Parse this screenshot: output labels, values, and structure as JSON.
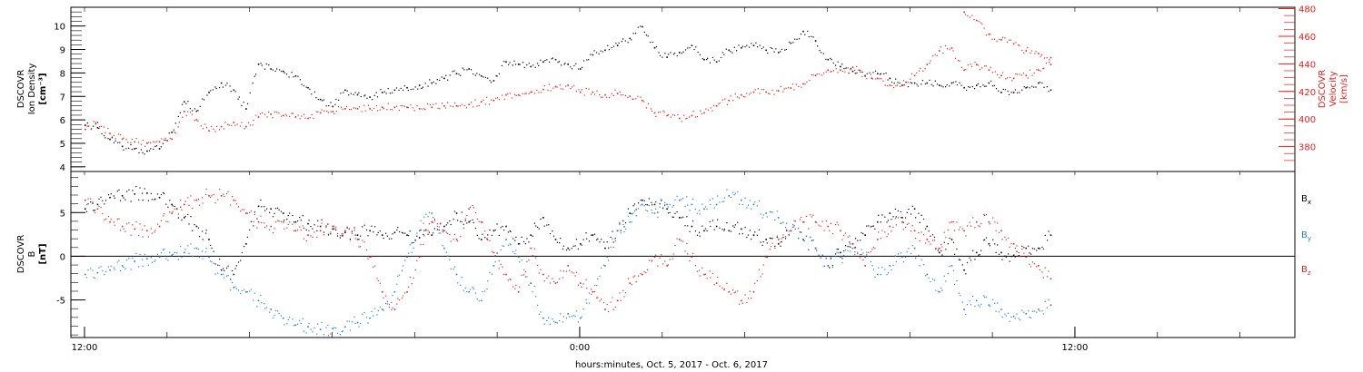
{
  "colors": {
    "black": "#000000",
    "red": "#e8201c",
    "blue": "#1e7fd6"
  },
  "xaxis": {
    "title": "hours:minutes, Oct.  5, 2017 - Oct.  6, 2017",
    "tick_labels": [
      "12:00",
      "0:00",
      "12:00"
    ],
    "tick_hours": [
      0,
      12,
      24
    ],
    "range_hours": [
      -0.33,
      29.33
    ]
  },
  "chart_data": [
    {
      "type": "scatter",
      "panel": "top",
      "left_axis": {
        "label_lines": [
          "DSCOVR",
          "Ion Density",
          "[cm⁻³]"
        ],
        "ticks": [
          "4",
          "5",
          "6",
          "7",
          "8",
          "9",
          "10"
        ],
        "tick_values": [
          4,
          5,
          6,
          7,
          8,
          9,
          10
        ],
        "ylim": [
          3.8,
          10.8
        ]
      },
      "right_axis": {
        "label_lines": [
          "DSCOVR",
          "Velocity",
          "[km/s]"
        ],
        "ticks": [
          "380",
          "400",
          "420",
          "440",
          "460",
          "480"
        ],
        "tick_values": [
          380,
          400,
          420,
          440,
          460,
          480
        ],
        "ylim": [
          362,
          481
        ]
      },
      "series": [
        {
          "key": "density",
          "axis": "left",
          "color": "#000000",
          "x": [
            0.0,
            0.3,
            0.6,
            0.9,
            1.2,
            1.5,
            1.8,
            2.1,
            2.4,
            2.7,
            3.0,
            3.3,
            3.6,
            3.9,
            4.2,
            4.5,
            4.8,
            5.1,
            5.4,
            5.7,
            6.0,
            6.3,
            6.6,
            6.9,
            7.2,
            7.5,
            7.8,
            8.1,
            8.4,
            8.7,
            9.0,
            9.3,
            9.6,
            9.9,
            10.2,
            10.5,
            10.8,
            11.1,
            11.4,
            11.7,
            12.0,
            12.3,
            12.6,
            12.9,
            13.2,
            13.5,
            13.8,
            14.1,
            14.4,
            14.7,
            15.0,
            15.3,
            15.6,
            15.9,
            16.2,
            16.5,
            16.8,
            17.1,
            17.4,
            17.7,
            18.0,
            18.3,
            18.6,
            18.9,
            19.2,
            19.5,
            19.8,
            20.1,
            20.4,
            20.7,
            21.0,
            21.3,
            21.6,
            21.9,
            22.2,
            22.5,
            22.8,
            23.1,
            23.4
          ],
          "y": [
            5.8,
            5.7,
            5.2,
            4.9,
            4.8,
            4.7,
            4.8,
            5.5,
            6.8,
            6.4,
            7.2,
            7.6,
            7.3,
            6.5,
            8.4,
            8.2,
            8.1,
            7.9,
            7.4,
            6.9,
            6.6,
            7.3,
            7.1,
            7.0,
            7.2,
            7.3,
            7.4,
            7.5,
            7.6,
            7.8,
            8.0,
            8.2,
            7.9,
            7.7,
            8.5,
            8.4,
            8.3,
            8.5,
            8.6,
            8.4,
            8.2,
            8.8,
            9.0,
            9.2,
            9.5,
            10.0,
            9.1,
            8.7,
            8.9,
            9.2,
            8.6,
            8.5,
            9.0,
            9.1,
            9.2,
            9.0,
            8.9,
            9.3,
            9.8,
            9.4,
            8.6,
            8.3,
            8.1,
            7.9,
            8.0,
            7.8,
            7.5,
            7.6,
            7.6,
            7.5,
            7.6,
            7.4,
            7.5,
            7.6,
            7.2,
            7.2,
            7.4,
            7.6,
            7.3
          ]
        },
        {
          "key": "velocity",
          "axis": "right",
          "color": "#e8201c",
          "x": [
            0.0,
            0.3,
            0.6,
            0.9,
            1.2,
            1.5,
            1.8,
            2.1,
            2.4,
            2.7,
            3.0,
            3.3,
            3.6,
            3.9,
            4.2,
            4.5,
            4.8,
            5.1,
            5.4,
            5.7,
            6.0,
            6.3,
            6.6,
            6.9,
            7.2,
            7.5,
            7.8,
            8.1,
            8.4,
            8.7,
            9.0,
            9.3,
            9.6,
            9.9,
            10.2,
            10.5,
            10.8,
            11.1,
            11.4,
            11.7,
            12.0,
            12.3,
            12.6,
            12.9,
            13.2,
            13.5,
            13.8,
            14.1,
            14.4,
            14.7,
            15.0,
            15.3,
            15.6,
            15.9,
            16.2,
            16.5,
            16.8,
            17.1,
            17.4,
            17.7,
            18.0,
            18.3,
            18.6,
            18.9,
            19.2,
            19.5,
            19.8,
            20.1,
            20.4,
            20.7,
            21.0,
            21.3,
            21.6,
            21.9,
            22.2,
            22.5,
            22.8,
            23.1,
            23.4
          ],
          "y": [
            393,
            398,
            390,
            386,
            384,
            383,
            384,
            386,
            406,
            400,
            392,
            395,
            398,
            395,
            402,
            404,
            403,
            402,
            401,
            405,
            406,
            408,
            408,
            408,
            409,
            409,
            409,
            408,
            409,
            410,
            410,
            411,
            413,
            414,
            418,
            418,
            420,
            422,
            424,
            425,
            420,
            420,
            418,
            419,
            417,
            414,
            405,
            403,
            401,
            403,
            405,
            410,
            414,
            418,
            420,
            420,
            421,
            423,
            426,
            432,
            436,
            436,
            438,
            432,
            430,
            425,
            425,
            432,
            440,
            450,
            452,
            436,
            440,
            436,
            432,
            430,
            432,
            436,
            440
          ]
        },
        {
          "key": "velocity_late",
          "axis": "right",
          "color": "#e8201c",
          "x": [
            21.3,
            21.6,
            21.9,
            22.2,
            22.5,
            22.8,
            23.1,
            23.4
          ],
          "y": [
            478,
            472,
            462,
            458,
            455,
            450,
            448,
            445
          ]
        }
      ]
    },
    {
      "type": "scatter",
      "panel": "bottom",
      "left_axis": {
        "label_lines": [
          "DSCOVR",
          "B",
          "[nT]"
        ],
        "ticks": [
          "-5",
          "0",
          "5"
        ],
        "tick_values": [
          -5,
          0,
          5
        ],
        "ylim": [
          -9.3,
          9.7
        ]
      },
      "zero_line": true,
      "series": [
        {
          "key": "bx",
          "name": "B",
          "sub": "x",
          "color": "#000000",
          "x": [
            0.0,
            0.3,
            0.6,
            0.9,
            1.2,
            1.5,
            1.8,
            2.1,
            2.4,
            2.7,
            3.0,
            3.3,
            3.6,
            3.9,
            4.2,
            4.5,
            4.8,
            5.1,
            5.4,
            5.7,
            6.0,
            6.3,
            6.6,
            6.9,
            7.2,
            7.5,
            7.8,
            8.1,
            8.4,
            8.7,
            9.0,
            9.3,
            9.6,
            9.9,
            10.2,
            10.5,
            10.8,
            11.1,
            11.4,
            11.7,
            12.0,
            12.3,
            12.6,
            12.9,
            13.2,
            13.5,
            13.8,
            14.1,
            14.4,
            14.7,
            15.0,
            15.3,
            15.6,
            15.9,
            16.2,
            16.5,
            16.8,
            17.1,
            17.4,
            17.7,
            18.0,
            18.3,
            18.6,
            18.9,
            19.2,
            19.5,
            19.8,
            20.1,
            20.4,
            20.7,
            21.0,
            21.3,
            21.6,
            21.9,
            22.2,
            22.5,
            22.8,
            23.1,
            23.4
          ],
          "y": [
            5.5,
            6.0,
            6.8,
            7.0,
            7.2,
            7.3,
            6.8,
            6.0,
            4.5,
            3.5,
            2.0,
            -1.5,
            -2.0,
            1.5,
            5.8,
            5.5,
            5.0,
            4.0,
            3.8,
            3.5,
            3.2,
            2.8,
            2.5,
            3.0,
            2.5,
            2.8,
            2.5,
            2.2,
            2.5,
            3.5,
            5.0,
            4.0,
            2.0,
            3.0,
            3.5,
            1.5,
            2.5,
            4.5,
            2.0,
            1.0,
            1.5,
            2.5,
            1.0,
            3.0,
            5.0,
            6.5,
            6.0,
            5.5,
            4.5,
            3.5,
            3.0,
            3.5,
            3.0,
            3.2,
            2.5,
            2.0,
            1.5,
            3.0,
            2.0,
            1.0,
            -1.0,
            0.5,
            1.5,
            2.5,
            4.0,
            5.0,
            4.5,
            5.5,
            3.5,
            0.5,
            2.0,
            -1.5,
            0.5,
            1.5,
            0.5,
            0.2,
            1.0,
            1.0,
            2.5
          ]
        },
        {
          "key": "by",
          "name": "B",
          "sub": "y",
          "color": "#1e7fd6",
          "x": [
            0.0,
            0.3,
            0.6,
            0.9,
            1.2,
            1.5,
            1.8,
            2.1,
            2.4,
            2.7,
            3.0,
            3.3,
            3.6,
            3.9,
            4.2,
            4.5,
            4.8,
            5.1,
            5.4,
            5.7,
            6.0,
            6.3,
            6.6,
            6.9,
            7.2,
            7.5,
            7.8,
            8.1,
            8.4,
            8.7,
            9.0,
            9.3,
            9.6,
            9.9,
            10.2,
            10.5,
            10.8,
            11.1,
            11.4,
            11.7,
            12.0,
            12.3,
            12.6,
            12.9,
            13.2,
            13.5,
            13.8,
            14.1,
            14.4,
            14.7,
            15.0,
            15.3,
            15.6,
            15.9,
            16.2,
            16.5,
            16.8,
            17.1,
            17.4,
            17.7,
            18.0,
            18.3,
            18.6,
            18.9,
            19.2,
            19.5,
            19.8,
            20.1,
            20.4,
            20.7,
            21.0,
            21.3,
            21.6,
            21.9,
            22.2,
            22.5,
            22.8,
            23.1,
            23.4
          ],
          "y": [
            -2.0,
            -1.8,
            -1.5,
            -1.0,
            -0.5,
            -0.2,
            0.0,
            0.2,
            0.5,
            1.0,
            0.0,
            -2.0,
            -3.5,
            -4.0,
            -5.0,
            -6.0,
            -7.0,
            -7.8,
            -8.0,
            -8.3,
            -8.2,
            -8.0,
            -7.5,
            -7.0,
            -6.0,
            -4.0,
            0.0,
            3.0,
            5.0,
            1.0,
            -2.0,
            -4.0,
            -5.0,
            -1.0,
            2.0,
            0.0,
            -3.0,
            -7.0,
            -7.5,
            -6.5,
            -7.0,
            -4.0,
            -1.0,
            3.0,
            4.0,
            6.0,
            5.0,
            6.0,
            6.5,
            6.0,
            5.5,
            6.0,
            7.0,
            6.5,
            6.0,
            5.0,
            4.5,
            3.0,
            2.0,
            1.0,
            -1.0,
            0.0,
            1.0,
            0.0,
            -2.0,
            -1.0,
            0.0,
            1.0,
            -2.0,
            -4.0,
            -1.0,
            -6.0,
            -5.0,
            -5.5,
            -6.0,
            -6.8,
            -6.5,
            -6.0,
            -5.5
          ]
        },
        {
          "key": "bz",
          "name": "B",
          "sub": "z",
          "color": "#e8201c",
          "x": [
            0.0,
            0.3,
            0.6,
            0.9,
            1.2,
            1.5,
            1.8,
            2.1,
            2.4,
            2.7,
            3.0,
            3.3,
            3.6,
            3.9,
            4.2,
            4.5,
            4.8,
            5.1,
            5.4,
            5.7,
            6.0,
            6.3,
            6.6,
            6.9,
            7.2,
            7.5,
            7.8,
            8.1,
            8.4,
            8.7,
            9.0,
            9.3,
            9.6,
            9.9,
            10.2,
            10.5,
            10.8,
            11.1,
            11.4,
            11.7,
            12.0,
            12.3,
            12.6,
            12.9,
            13.2,
            13.5,
            13.8,
            14.1,
            14.4,
            14.7,
            15.0,
            15.3,
            15.6,
            15.9,
            16.2,
            16.5,
            16.8,
            17.1,
            17.4,
            17.7,
            18.0,
            18.3,
            18.6,
            18.9,
            19.2,
            19.5,
            19.8,
            20.1,
            20.4,
            20.7,
            21.0,
            21.3,
            21.6,
            21.9,
            22.2,
            22.5,
            22.8,
            23.1,
            23.4
          ],
          "y": [
            6.5,
            5.5,
            4.0,
            3.5,
            3.2,
            3.0,
            3.5,
            5.0,
            6.0,
            6.5,
            7.0,
            7.0,
            6.5,
            5.0,
            4.0,
            3.5,
            4.0,
            3.0,
            2.5,
            3.0,
            3.5,
            3.0,
            2.0,
            0.0,
            -4.0,
            -6.0,
            -4.0,
            0.0,
            4.0,
            3.0,
            2.0,
            5.5,
            4.0,
            0.5,
            -2.0,
            -4.0,
            1.0,
            -2.0,
            -3.0,
            -1.0,
            -3.0,
            -4.0,
            -6.0,
            -5.0,
            -3.0,
            -2.0,
            0.0,
            -1.0,
            2.0,
            0.0,
            -2.0,
            -3.0,
            -4.0,
            -5.0,
            -4.0,
            0.0,
            2.0,
            3.0,
            4.0,
            4.0,
            3.5,
            3.0,
            1.5,
            -1.0,
            2.0,
            3.5,
            4.0,
            3.0,
            2.0,
            1.0,
            4.0,
            3.0,
            4.0,
            4.0,
            3.0,
            1.5,
            0.0,
            -1.0,
            -2.5
          ]
        }
      ]
    }
  ]
}
